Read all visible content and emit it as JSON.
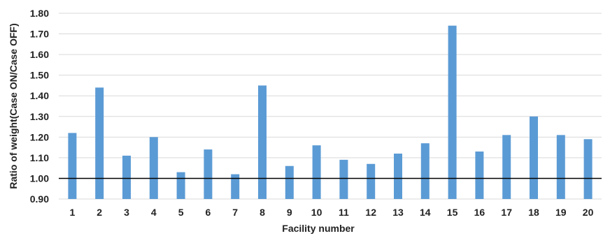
{
  "chart_data": {
    "type": "bar",
    "title": "",
    "xlabel": "Facility number",
    "ylabel": "Ratio of weight(Case ON/Case OFF)",
    "categories": [
      "1",
      "2",
      "3",
      "4",
      "5",
      "6",
      "7",
      "8",
      "9",
      "10",
      "11",
      "12",
      "13",
      "14",
      "15",
      "16",
      "17",
      "18",
      "19",
      "20"
    ],
    "values": [
      1.22,
      1.44,
      1.11,
      1.2,
      1.03,
      1.14,
      1.02,
      1.45,
      1.06,
      1.16,
      1.09,
      1.07,
      1.12,
      1.17,
      1.74,
      1.13,
      1.21,
      1.3,
      1.21,
      1.19
    ],
    "ylim": [
      0.9,
      1.8
    ],
    "yticks": [
      "0.90",
      "1.00",
      "1.10",
      "1.20",
      "1.30",
      "1.40",
      "1.50",
      "1.60",
      "1.70",
      "1.80"
    ],
    "reference_line": 1.0,
    "grid": true,
    "legend": "none",
    "bar_color": "#5b9bd5",
    "reference_line_color": "#000000",
    "grid_color": "#d9d9d9"
  }
}
